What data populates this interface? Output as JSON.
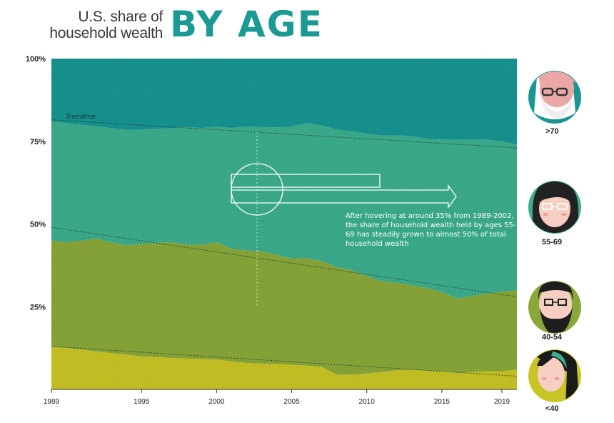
{
  "header": {
    "title_line1": "U.S. share of",
    "title_line2": "household wealth",
    "title_big": "BY AGE"
  },
  "annotation": {
    "text": "After hovering at around 35% from 1989-2002, the share of household wealth held by ages 55-69 has steadily grown to almost 50% of total household wealth",
    "trendline_label": "Trendline"
  },
  "colors": {
    "lt40": "#c9c425",
    "a40_54": "#8aa83a",
    "a55_69": "#3cae8f",
    "gt70": "#1c9593"
  },
  "legend": [
    {
      "key": "gt70",
      "label": ">70",
      "icon": "elderly-man-icon"
    },
    {
      "key": "a55_69",
      "label": "55-69",
      "icon": "woman-with-glasses-icon"
    },
    {
      "key": "a40_54",
      "label": "40-54",
      "icon": "bearded-man-icon"
    },
    {
      "key": "lt40",
      "label": "<40",
      "icon": "young-woman-icon"
    }
  ],
  "chart_data": {
    "type": "area",
    "stacked": true,
    "title": "U.S. share of household wealth BY AGE",
    "xlabel": "",
    "ylabel": "",
    "xlim": [
      1989,
      2020
    ],
    "ylim": [
      0,
      100
    ],
    "y_ticks": [
      {
        "value": 25,
        "label": "25%"
      },
      {
        "value": 50,
        "label": "50%"
      },
      {
        "value": 75,
        "label": "75%"
      },
      {
        "value": 100,
        "label": "100%"
      }
    ],
    "x_ticks": [
      {
        "value": 1989,
        "label": "1989"
      },
      {
        "value": 1995,
        "label": "1995"
      },
      {
        "value": 2000,
        "label": "2000"
      },
      {
        "value": 2005,
        "label": "2005"
      },
      {
        "value": 2010,
        "label": "2010"
      },
      {
        "value": 2015,
        "label": "2015"
      },
      {
        "value": 2019,
        "label": "2019"
      }
    ],
    "x": [
      1989,
      1990,
      1991,
      1992,
      1993,
      1994,
      1995,
      1996,
      1997,
      1998,
      1999,
      2000,
      2001,
      2002,
      2003,
      2004,
      2005,
      2006,
      2007,
      2008,
      2009,
      2010,
      2011,
      2012,
      2013,
      2014,
      2015,
      2016,
      2017,
      2018,
      2019,
      2020
    ],
    "series": [
      {
        "name": "<40",
        "key": "lt40",
        "values": [
          13,
          12.5,
          12,
          11.5,
          11,
          10.5,
          10,
          9.8,
          9.5,
          9.3,
          9.2,
          9,
          8.5,
          8,
          7.8,
          7.7,
          7.5,
          7.2,
          6.8,
          4.5,
          4.5,
          4.8,
          5.2,
          5.8,
          6,
          5.7,
          5.5,
          5,
          5.2,
          5.5,
          5.5,
          6
        ]
      },
      {
        "name": "40-54",
        "key": "a40_54",
        "values": [
          32,
          32,
          33,
          34,
          33.5,
          33,
          34,
          34.5,
          35,
          34.5,
          34.5,
          35.5,
          34,
          34,
          34,
          33,
          32,
          32.5,
          32,
          32.5,
          31.5,
          29.5,
          27.5,
          26.5,
          25.5,
          25,
          24,
          22.5,
          23,
          23.5,
          24,
          24
        ]
      },
      {
        "name": "55-69",
        "key": "a55_69",
        "values": [
          36,
          36,
          35,
          34,
          34.5,
          35,
          34.5,
          34.5,
          34.5,
          35.5,
          35.3,
          35,
          36.5,
          37.5,
          37.5,
          38.5,
          40,
          40.8,
          41,
          41.5,
          42,
          43,
          44,
          44.5,
          45,
          45,
          46,
          48,
          47.3,
          46.5,
          45.5,
          44
        ]
      },
      {
        "name": ">70",
        "key": "gt70",
        "values": [
          19,
          19.5,
          20,
          20.5,
          21,
          21.5,
          21.5,
          21.2,
          21,
          20.7,
          21,
          20.5,
          21,
          20.5,
          20.7,
          20.8,
          20.5,
          19.5,
          20.2,
          21.5,
          22,
          22.7,
          23.3,
          23.2,
          23.5,
          24.3,
          24.5,
          24.5,
          24.5,
          24.5,
          25,
          26
        ]
      }
    ],
    "trendlines": [
      {
        "name": "55-69 upper trend",
        "start": [
          1989,
          81.5
        ],
        "end": [
          2020,
          73
        ]
      },
      {
        "name": "55-69 lower trend",
        "start": [
          1989,
          49
        ],
        "end": [
          2020,
          28
        ]
      },
      {
        "name": "<40 trend",
        "start": [
          1989,
          13
        ],
        "end": [
          2020,
          4
        ]
      }
    ],
    "highlight_year": 2002.5
  }
}
